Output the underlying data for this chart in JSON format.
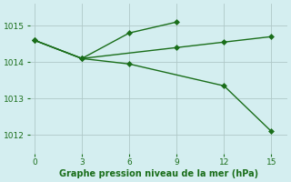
{
  "line1_x": [
    0,
    3,
    6,
    9
  ],
  "line1_y": [
    1014.6,
    1014.1,
    1014.8,
    1015.1
  ],
  "line2_x": [
    0,
    3,
    9,
    12,
    15
  ],
  "line2_y": [
    1014.6,
    1014.1,
    1014.4,
    1014.55,
    1014.7
  ],
  "line3_x": [
    0,
    3,
    6,
    12,
    15
  ],
  "line3_y": [
    1014.6,
    1014.1,
    1013.95,
    1013.35,
    1012.1
  ],
  "line_color": "#1a6e1a",
  "bg_color": "#d4eef0",
  "grid_color": "#b0c8c8",
  "xlabel": "Graphe pression niveau de la mer (hPa)",
  "xlabel_color": "#1a6e1a",
  "xticks": [
    0,
    3,
    6,
    9,
    12,
    15
  ],
  "yticks": [
    1012,
    1013,
    1014,
    1015
  ],
  "xlim": [
    -0.3,
    16
  ],
  "ylim": [
    1011.5,
    1015.6
  ],
  "markersize": 3,
  "linewidth": 1.0
}
